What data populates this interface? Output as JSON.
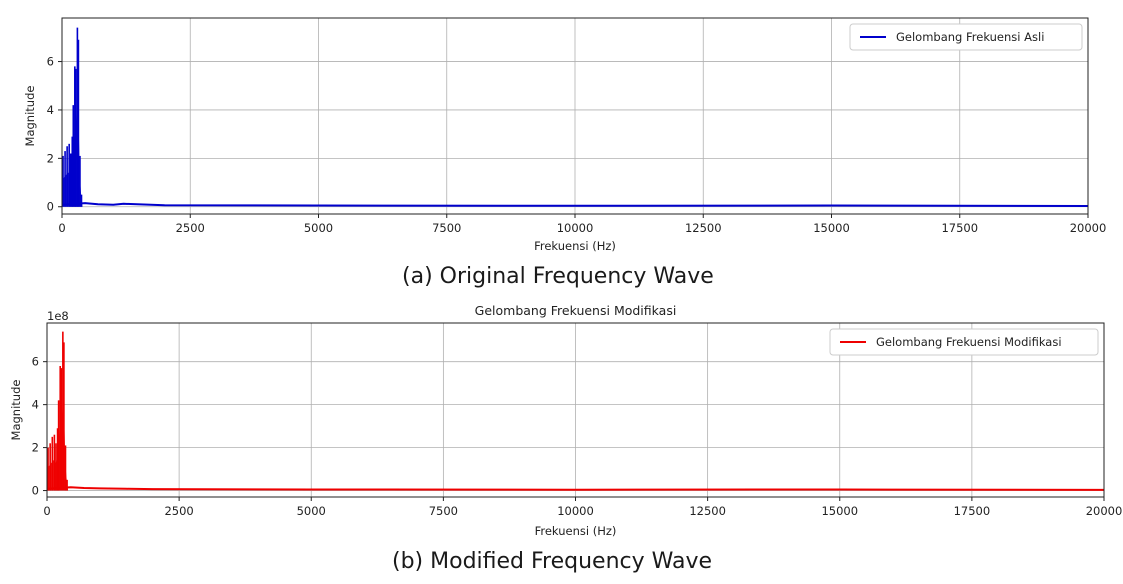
{
  "captions": {
    "a": "(a)  Original Frequency Wave",
    "b": "(b)  Modified Frequency Wave"
  },
  "chart_data": [
    {
      "type": "line",
      "title": "",
      "xlabel": "Frekuensi (Hz)",
      "ylabel": "Magnitude",
      "scale_label": "",
      "xlim": [
        0,
        20000
      ],
      "ylim": [
        -0.3,
        7.8
      ],
      "xticks": [
        0,
        2500,
        5000,
        7500,
        10000,
        12500,
        15000,
        17500,
        20000
      ],
      "yticks": [
        0,
        2,
        4,
        6
      ],
      "grid": true,
      "legend_position": "top-right",
      "series": [
        {
          "name": "Gelombang Frekuensi Asli",
          "color": "#0000cc",
          "peaks": [
            {
              "x": 20,
              "y": 2.1
            },
            {
              "x": 60,
              "y": 2.3
            },
            {
              "x": 100,
              "y": 2.5
            },
            {
              "x": 140,
              "y": 2.6
            },
            {
              "x": 170,
              "y": 2.2
            },
            {
              "x": 200,
              "y": 2.9
            },
            {
              "x": 220,
              "y": 4.2
            },
            {
              "x": 250,
              "y": 5.8
            },
            {
              "x": 270,
              "y": 5.7
            },
            {
              "x": 300,
              "y": 7.4
            },
            {
              "x": 320,
              "y": 6.9
            },
            {
              "x": 350,
              "y": 2.1
            },
            {
              "x": 380,
              "y": 0.5
            }
          ],
          "noise": [
            {
              "x": 450,
              "y": 0.15
            },
            {
              "x": 700,
              "y": 0.1
            },
            {
              "x": 1000,
              "y": 0.08
            },
            {
              "x": 1200,
              "y": 0.12
            },
            {
              "x": 2000,
              "y": 0.06
            },
            {
              "x": 5000,
              "y": 0.05
            },
            {
              "x": 10000,
              "y": 0.04
            },
            {
              "x": 15000,
              "y": 0.05
            },
            {
              "x": 20000,
              "y": 0.03
            }
          ]
        }
      ]
    },
    {
      "type": "line",
      "title": "Gelombang Frekuensi Modifikasi",
      "xlabel": "Frekuensi (Hz)",
      "ylabel": "Magnitude",
      "scale_label": "1e8",
      "xlim": [
        0,
        20000
      ],
      "ylim": [
        -0.3,
        7.8
      ],
      "xticks": [
        0,
        2500,
        5000,
        7500,
        10000,
        12500,
        15000,
        17500,
        20000
      ],
      "yticks": [
        0,
        2,
        4,
        6
      ],
      "grid": true,
      "legend_position": "top-right",
      "series": [
        {
          "name": "Gelombang Frekuensi Modifikasi",
          "color": "#ee0000",
          "peaks": [
            {
              "x": 20,
              "y": 2.0
            },
            {
              "x": 60,
              "y": 2.2
            },
            {
              "x": 100,
              "y": 2.5
            },
            {
              "x": 140,
              "y": 2.6
            },
            {
              "x": 170,
              "y": 2.2
            },
            {
              "x": 200,
              "y": 2.9
            },
            {
              "x": 220,
              "y": 4.2
            },
            {
              "x": 250,
              "y": 5.8
            },
            {
              "x": 270,
              "y": 5.7
            },
            {
              "x": 300,
              "y": 7.4
            },
            {
              "x": 320,
              "y": 6.9
            },
            {
              "x": 350,
              "y": 2.1
            },
            {
              "x": 380,
              "y": 0.5
            }
          ],
          "noise": [
            {
              "x": 450,
              "y": 0.15
            },
            {
              "x": 700,
              "y": 0.12
            },
            {
              "x": 1000,
              "y": 0.1
            },
            {
              "x": 1500,
              "y": 0.08
            },
            {
              "x": 2000,
              "y": 0.07
            },
            {
              "x": 5000,
              "y": 0.05
            },
            {
              "x": 10000,
              "y": 0.04
            },
            {
              "x": 15000,
              "y": 0.05
            },
            {
              "x": 20000,
              "y": 0.03
            }
          ]
        }
      ]
    }
  ]
}
